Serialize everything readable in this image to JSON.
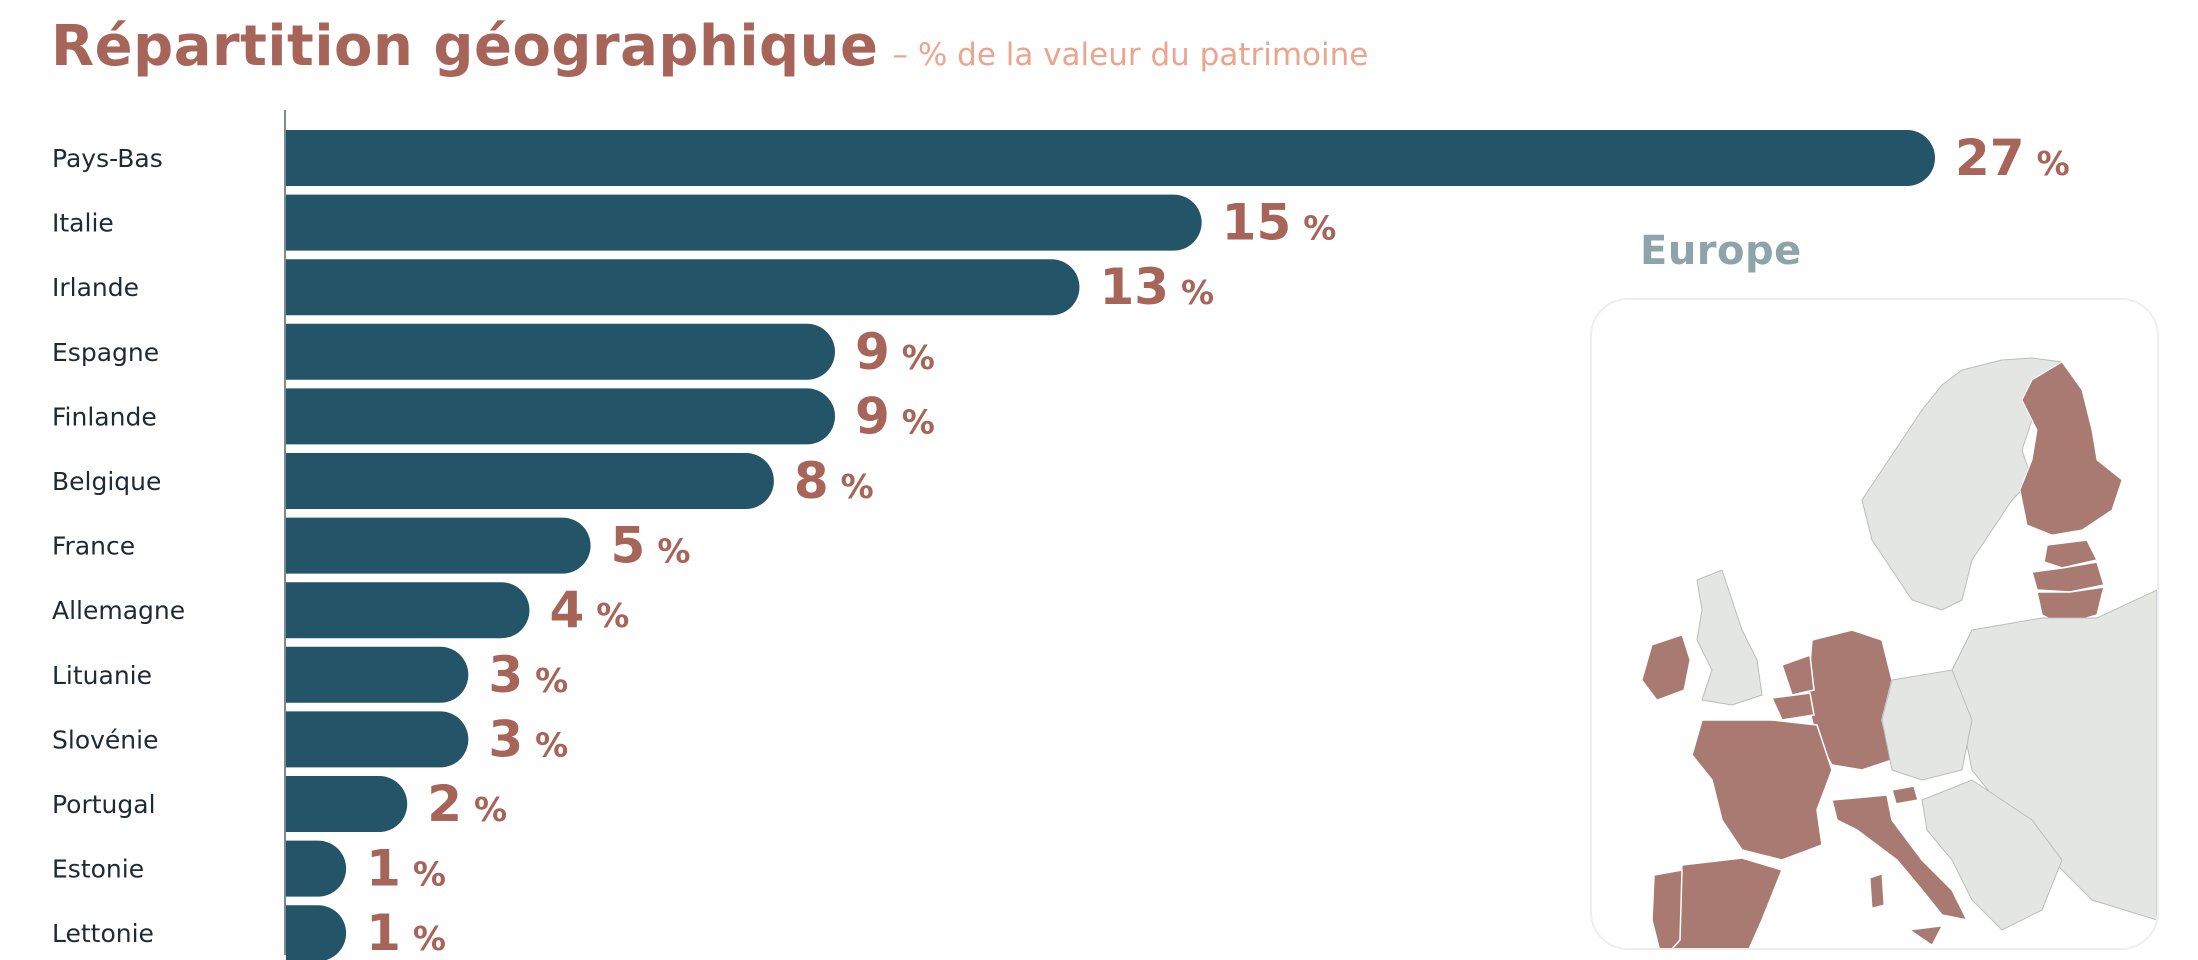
{
  "header": {
    "title": "Répartition géographique",
    "subtitle": "– % de la valeur du patrimoine"
  },
  "colors": {
    "bar": "#235468",
    "value_label": "#a76458",
    "title": "#a76458",
    "subtitle": "#eba58e",
    "map_highlight": "#a97a72",
    "map_land": "#e4e6e4",
    "map_title": "#8ea4ab"
  },
  "chart_data": {
    "type": "bar",
    "orientation": "horizontal",
    "title": "Répartition géographique",
    "subtitle": "– % de la valeur du patrimoine",
    "categories": [
      "Pays-Bas",
      "Italie",
      "Irlande",
      "Espagne",
      "Finlande",
      "Belgique",
      "France",
      "Allemagne",
      "Lituanie",
      "Slovénie",
      "Portugal",
      "Estonie",
      "Lettonie"
    ],
    "values": [
      27,
      15,
      13,
      9,
      9,
      8,
      5,
      4,
      3,
      3,
      2,
      1,
      1
    ],
    "value_suffix": "%",
    "xlim": [
      0,
      27
    ],
    "grid": false,
    "legend": "none"
  },
  "map": {
    "title": "Europe",
    "highlighted_icon": "europe-map-icon"
  }
}
